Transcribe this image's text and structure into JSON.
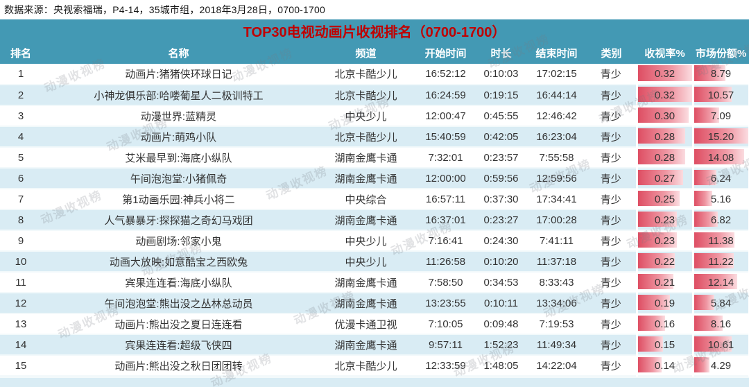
{
  "source_line": "数据来源：央视索福瑞，P4-14，35城市组，2018年3月28日，0700-1700",
  "watermark_text": "动漫收视榜",
  "colors": {
    "header_teal": "#4399b4",
    "title_red": "#c00000",
    "alt_row_blue": "#d9ecf4",
    "bar_red": "#de4e63",
    "bar_fade": "#fbdce0"
  },
  "chart_data": {
    "type": "table",
    "title": "TOP30电视动画片收视排名（0700-1700）",
    "columns": [
      "排名",
      "名称",
      "频道",
      "开始时间",
      "时长",
      "结束时间",
      "类别",
      "收视率%",
      "市场份额%"
    ],
    "column_keys": [
      "rank",
      "name",
      "channel",
      "start-time",
      "duration",
      "end-time",
      "category",
      "rating",
      "share"
    ],
    "bar_max": {
      "rating": 0.32,
      "share": 15.2
    },
    "rows": [
      [
        "1",
        "动画片:猪猪侠环球日记",
        "北京卡酷少儿",
        "16:52:12",
        "0:10:03",
        "17:02:15",
        "青少",
        "0.32",
        "8.79"
      ],
      [
        "2",
        "小神龙俱乐部:哈喽葡星人二极训特工",
        "北京卡酷少儿",
        "16:24:59",
        "0:19:15",
        "16:44:14",
        "青少",
        "0.32",
        "10.57"
      ],
      [
        "3",
        "动漫世界:蓝精灵",
        "中央少儿",
        "12:00:47",
        "0:45:55",
        "12:46:42",
        "青少",
        "0.30",
        "7.09"
      ],
      [
        "4",
        "动画片:萌鸡小队",
        "北京卡酷少儿",
        "15:40:59",
        "0:42:05",
        "16:23:04",
        "青少",
        "0.28",
        "15.20"
      ],
      [
        "5",
        "艾米最早到:海底小纵队",
        "湖南金鹰卡通",
        "7:32:01",
        "0:23:57",
        "7:55:58",
        "青少",
        "0.28",
        "14.08"
      ],
      [
        "6",
        "午间泡泡堂:小猪佩奇",
        "湖南金鹰卡通",
        "12:00:00",
        "0:59:56",
        "12:59:56",
        "青少",
        "0.27",
        "6.24"
      ],
      [
        "7",
        "第1动画乐园:神兵小将二",
        "中央综合",
        "16:57:11",
        "0:37:30",
        "17:34:41",
        "青少",
        "0.25",
        "5.16"
      ],
      [
        "8",
        "人气暴暴牙:探探猫之奇幻马戏团",
        "湖南金鹰卡通",
        "16:37:01",
        "0:23:27",
        "17:00:28",
        "青少",
        "0.23",
        "6.82"
      ],
      [
        "9",
        "动画剧场:邻家小鬼",
        "中央少儿",
        "7:16:41",
        "0:24:30",
        "7:41:11",
        "青少",
        "0.23",
        "11.38"
      ],
      [
        "10",
        "动画大放映:如意酷宝之西欧兔",
        "中央少儿",
        "11:26:58",
        "0:10:20",
        "11:37:18",
        "青少",
        "0.22",
        "11.22"
      ],
      [
        "11",
        "宾果连连看:海底小纵队",
        "湖南金鹰卡通",
        "7:58:50",
        "0:34:53",
        "8:33:43",
        "青少",
        "0.21",
        "12.14"
      ],
      [
        "12",
        "午间泡泡堂:熊出没之丛林总动员",
        "湖南金鹰卡通",
        "13:23:55",
        "0:10:11",
        "13:34:06",
        "青少",
        "0.19",
        "5.84"
      ],
      [
        "13",
        "动画片:熊出没之夏日连连看",
        "优漫卡通卫视",
        "7:10:05",
        "0:09:48",
        "7:19:53",
        "青少",
        "0.16",
        "8.16"
      ],
      [
        "14",
        "宾果连连看:超级飞侠四",
        "湖南金鹰卡通",
        "9:57:11",
        "1:52:23",
        "11:49:34",
        "青少",
        "0.15",
        "10.61"
      ],
      [
        "15",
        "动画片:熊出没之秋日团团转",
        "北京卡酷少儿",
        "12:33:59",
        "1:48:05",
        "14:22:04",
        "青少",
        "0.14",
        "4.29"
      ]
    ]
  }
}
